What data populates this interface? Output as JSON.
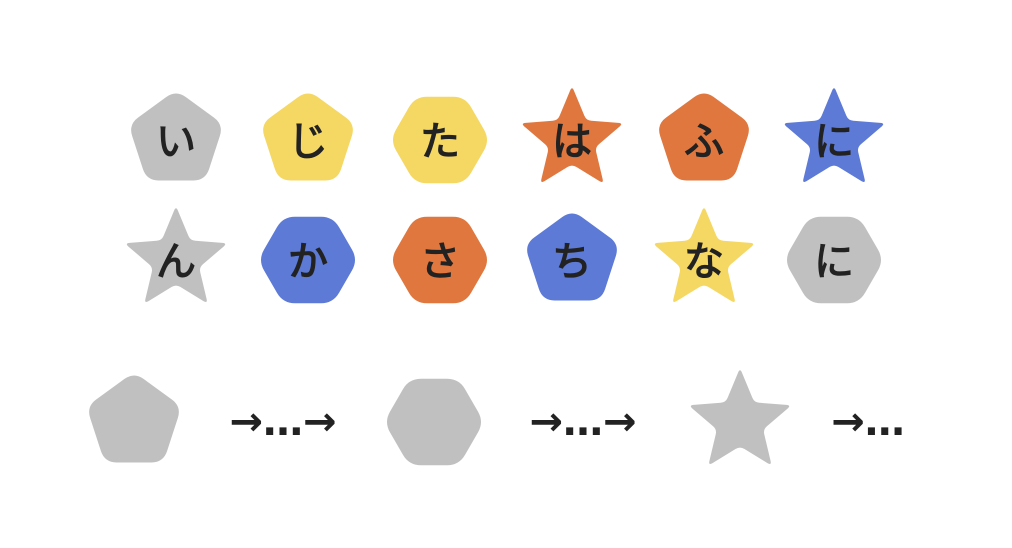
{
  "colors": {
    "gray": "#c0c0c0",
    "yellow": "#f5d763",
    "orange": "#df773f",
    "blue": "#5c7ad6",
    "text": "#222222"
  },
  "grid": [
    [
      {
        "shape": "pentagon",
        "color": "gray",
        "char": "い"
      },
      {
        "shape": "pentagon",
        "color": "yellow",
        "char": "じ"
      },
      {
        "shape": "hexagon",
        "color": "yellow",
        "char": "た"
      },
      {
        "shape": "star",
        "color": "orange",
        "char": "は"
      },
      {
        "shape": "pentagon",
        "color": "orange",
        "char": "ふ"
      },
      {
        "shape": "star",
        "color": "blue",
        "char": "に"
      }
    ],
    [
      {
        "shape": "star",
        "color": "gray",
        "char": "ん"
      },
      {
        "shape": "hexagon",
        "color": "blue",
        "char": "か"
      },
      {
        "shape": "hexagon",
        "color": "orange",
        "char": "さ"
      },
      {
        "shape": "pentagon",
        "color": "blue",
        "char": "ち"
      },
      {
        "shape": "star",
        "color": "yellow",
        "char": "な"
      },
      {
        "shape": "hexagon",
        "color": "gray",
        "char": "に"
      }
    ]
  ],
  "sequence": [
    {
      "shape": "pentagon",
      "color": "gray",
      "label": "→…→"
    },
    {
      "shape": "hexagon",
      "color": "gray",
      "label": "→…→"
    },
    {
      "shape": "star",
      "color": "gray",
      "label": "→…"
    }
  ]
}
